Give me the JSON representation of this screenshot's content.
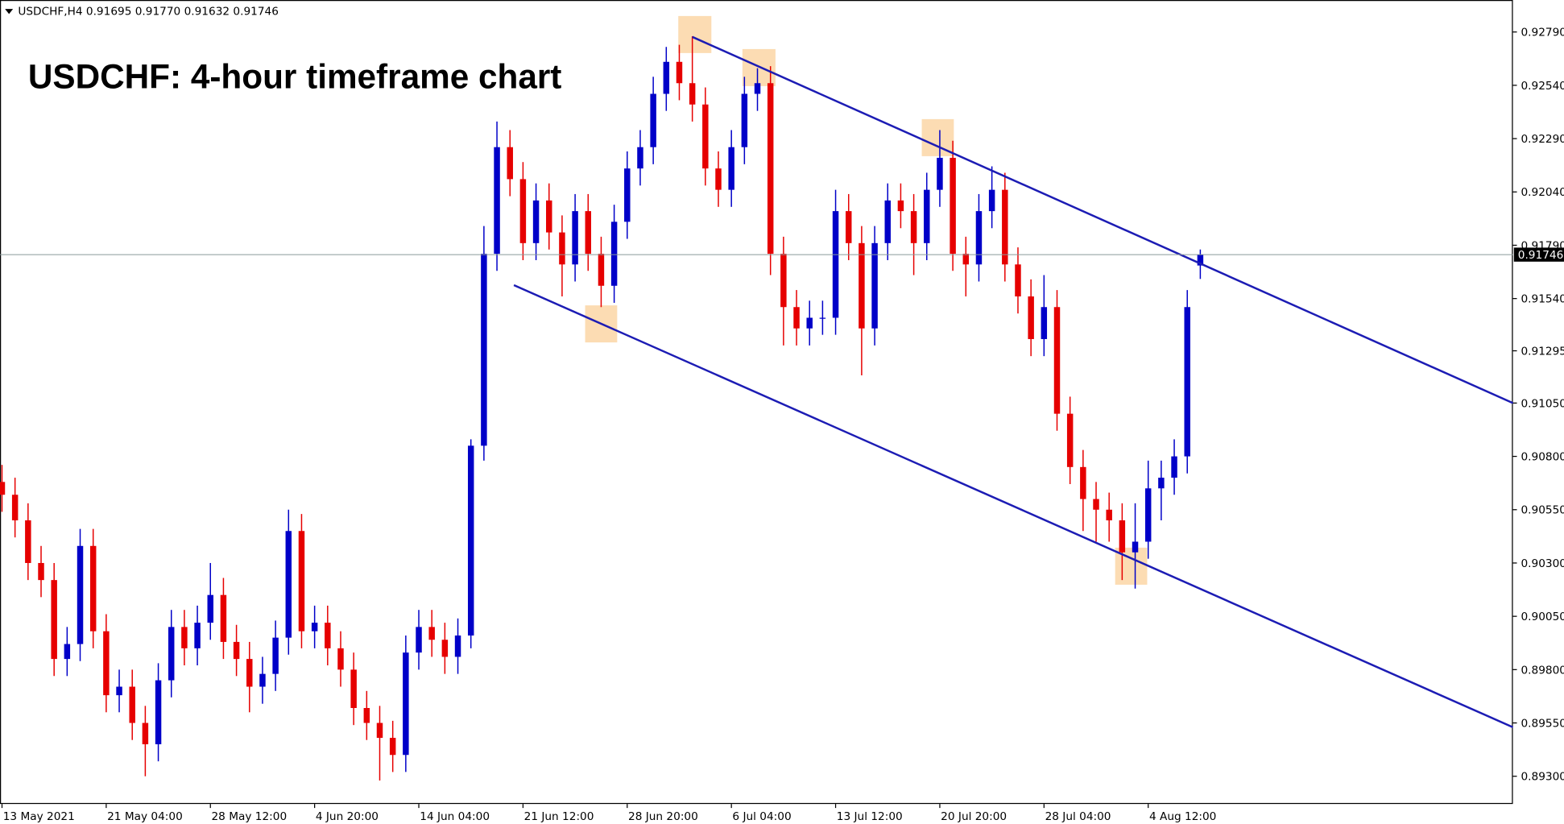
{
  "chart_data": {
    "type": "candlestick",
    "header": "USDCHF,H4  0.91695 0.91770 0.91632 0.91746",
    "annotation": "USDCHF: 4-hour timeframe chart",
    "categories": [
      "13 May 2021",
      null,
      null,
      null,
      null,
      null,
      null,
      null,
      "21 May 04:00",
      null,
      null,
      null,
      null,
      null,
      null,
      null,
      "28 May 12:00",
      null,
      null,
      null,
      null,
      null,
      null,
      null,
      "4 Jun 20:00",
      null,
      null,
      null,
      null,
      null,
      null,
      null,
      "14 Jun 04:00",
      null,
      null,
      null,
      null,
      null,
      null,
      null,
      "21 Jun 12:00",
      null,
      null,
      null,
      null,
      null,
      null,
      null,
      "28 Jun 20:00",
      null,
      null,
      null,
      null,
      null,
      null,
      null,
      "6 Jul 04:00",
      null,
      null,
      null,
      null,
      null,
      null,
      null,
      "13 Jul 12:00",
      null,
      null,
      null,
      null,
      null,
      null,
      null,
      "20 Jul 20:00",
      null,
      null,
      null,
      null,
      null,
      null,
      null,
      "28 Jul 04:00",
      null,
      null,
      null,
      null,
      null,
      null,
      null,
      "4 Aug 12:00",
      null,
      null,
      null,
      null
    ],
    "open": [
      0.9068,
      0.9062,
      0.905,
      0.903,
      0.9022,
      0.8985,
      0.8992,
      0.9038,
      0.8998,
      0.8968,
      0.8972,
      0.8955,
      0.8945,
      0.8975,
      0.9,
      0.899,
      0.9002,
      0.9015,
      0.8993,
      0.8985,
      0.8972,
      0.8978,
      0.8995,
      0.9045,
      0.8998,
      0.9002,
      0.899,
      0.898,
      0.8962,
      0.8955,
      0.8948,
      0.894,
      0.8988,
      0.9,
      0.8994,
      0.8986,
      0.8996,
      0.9085,
      0.9175,
      0.9225,
      0.921,
      0.918,
      0.92,
      0.9185,
      0.917,
      0.9195,
      0.9175,
      0.916,
      0.919,
      0.9215,
      0.9225,
      0.925,
      0.9265,
      0.9255,
      0.9245,
      0.9215,
      0.9205,
      0.9225,
      0.925,
      0.9255,
      0.9175,
      0.915,
      0.914,
      0.9145,
      0.9145,
      0.9195,
      0.918,
      0.914,
      0.918,
      0.92,
      0.9195,
      0.918,
      0.9205,
      0.922,
      0.9175,
      0.917,
      0.9195,
      0.9205,
      0.917,
      0.9155,
      0.9135,
      0.915,
      0.91,
      0.9075,
      0.906,
      0.9055,
      0.905,
      0.9035,
      0.904,
      0.9065,
      0.907,
      0.908,
      0.91695
    ],
    "high": [
      0.9076,
      0.907,
      0.9058,
      0.9038,
      0.903,
      0.9,
      0.9046,
      0.9046,
      0.9006,
      0.898,
      0.898,
      0.8963,
      0.8983,
      0.9008,
      0.9008,
      0.901,
      0.903,
      0.9023,
      0.9001,
      0.8993,
      0.8986,
      0.9003,
      0.9055,
      0.9053,
      0.901,
      0.901,
      0.8998,
      0.8988,
      0.897,
      0.8963,
      0.8956,
      0.8996,
      0.9008,
      0.9008,
      0.9002,
      0.9004,
      0.9088,
      0.9188,
      0.9237,
      0.9233,
      0.9218,
      0.9208,
      0.9208,
      0.9193,
      0.9203,
      0.9203,
      0.9183,
      0.9198,
      0.9223,
      0.9233,
      0.9258,
      0.9272,
      0.9273,
      0.9277,
      0.9253,
      0.9223,
      0.9233,
      0.9258,
      0.9262,
      0.9263,
      0.9183,
      0.9158,
      0.9153,
      0.9153,
      0.9205,
      0.9203,
      0.9188,
      0.9188,
      0.9208,
      0.9208,
      0.9203,
      0.9213,
      0.9233,
      0.9228,
      0.9183,
      0.9203,
      0.9216,
      0.9213,
      0.9178,
      0.9163,
      0.9165,
      0.9158,
      0.9108,
      0.9083,
      0.9068,
      0.9063,
      0.9058,
      0.9058,
      0.9078,
      0.9078,
      0.9088,
      0.9158,
      0.9177
    ],
    "low": [
      0.9054,
      0.9042,
      0.9022,
      0.9014,
      0.8977,
      0.8977,
      0.8984,
      0.899,
      0.896,
      0.896,
      0.8947,
      0.893,
      0.8937,
      0.8967,
      0.8982,
      0.8982,
      0.8994,
      0.8985,
      0.8977,
      0.896,
      0.8964,
      0.897,
      0.8987,
      0.899,
      0.899,
      0.8982,
      0.8972,
      0.8954,
      0.8947,
      0.8928,
      0.8932,
      0.8932,
      0.898,
      0.8986,
      0.8978,
      0.8978,
      0.899,
      0.9078,
      0.9167,
      0.9202,
      0.9172,
      0.9172,
      0.9177,
      0.9155,
      0.9162,
      0.9167,
      0.915,
      0.9152,
      0.9182,
      0.9207,
      0.9217,
      0.9242,
      0.9247,
      0.9237,
      0.9207,
      0.9197,
      0.9197,
      0.9217,
      0.9242,
      0.9165,
      0.9132,
      0.9132,
      0.9132,
      0.9137,
      0.9137,
      0.9172,
      0.9118,
      0.9132,
      0.9172,
      0.9187,
      0.9165,
      0.9172,
      0.9197,
      0.9167,
      0.9155,
      0.9162,
      0.9187,
      0.9162,
      0.9147,
      0.9127,
      0.9127,
      0.9092,
      0.9067,
      0.9045,
      0.904,
      0.904,
      0.9022,
      0.9018,
      0.9032,
      0.905,
      0.9062,
      0.9072,
      0.91632
    ],
    "close": [
      0.9062,
      0.905,
      0.903,
      0.9022,
      0.8985,
      0.8992,
      0.9038,
      0.8998,
      0.8968,
      0.8972,
      0.8955,
      0.8945,
      0.8975,
      0.9,
      0.899,
      0.9002,
      0.9015,
      0.8993,
      0.8985,
      0.8972,
      0.8978,
      0.8995,
      0.9045,
      0.8998,
      0.9002,
      0.899,
      0.898,
      0.8962,
      0.8955,
      0.8948,
      0.894,
      0.8988,
      0.9,
      0.8994,
      0.8986,
      0.8996,
      0.9085,
      0.9175,
      0.9225,
      0.921,
      0.918,
      0.92,
      0.9185,
      0.917,
      0.9195,
      0.9175,
      0.916,
      0.919,
      0.9215,
      0.9225,
      0.925,
      0.9265,
      0.9255,
      0.9245,
      0.9215,
      0.9205,
      0.9225,
      0.925,
      0.9255,
      0.9175,
      0.915,
      0.914,
      0.9145,
      0.9145,
      0.9195,
      0.918,
      0.914,
      0.918,
      0.92,
      0.9195,
      0.918,
      0.9205,
      0.922,
      0.9175,
      0.917,
      0.9195,
      0.9205,
      0.917,
      0.9155,
      0.9135,
      0.915,
      0.91,
      0.9075,
      0.906,
      0.9055,
      0.905,
      0.9035,
      0.904,
      0.9065,
      0.907,
      0.908,
      0.915,
      0.91746
    ],
    "up_color": "#0000c8",
    "down_color": "#e60000",
    "last_price": {
      "value": 0.91746,
      "label": "0.91746"
    },
    "trendlines": [
      {
        "color": "#1c1cb4",
        "x": [
          53,
          116
        ],
        "y": [
          0.92767,
          0.9105
        ]
      },
      {
        "color": "#1c1cb4",
        "x": [
          39.3,
          116
        ],
        "y": [
          0.91603,
          0.8953
        ]
      }
    ],
    "ylim": [
      0.8917,
      0.9294
    ],
    "yticks": [
      {
        "value": 0.9279,
        "label": "0.92790"
      },
      {
        "value": 0.9254,
        "label": "0.92540"
      },
      {
        "value": 0.9229,
        "label": "0.92290"
      },
      {
        "value": 0.9204,
        "label": "0.92040"
      },
      {
        "value": 0.9179,
        "label": "0.91790"
      },
      {
        "value": 0.9154,
        "label": "0.91540"
      },
      {
        "value": 0.91295,
        "label": "0.91295"
      },
      {
        "value": 0.9105,
        "label": "0.91050"
      },
      {
        "value": 0.908,
        "label": "0.90800"
      },
      {
        "value": 0.9055,
        "label": "0.90550"
      },
      {
        "value": 0.903,
        "label": "0.90300"
      },
      {
        "value": 0.9005,
        "label": "0.90050"
      },
      {
        "value": 0.898,
        "label": "0.89800"
      },
      {
        "value": 0.8955,
        "label": "0.89550"
      },
      {
        "value": 0.893,
        "label": "0.89300"
      }
    ]
  }
}
